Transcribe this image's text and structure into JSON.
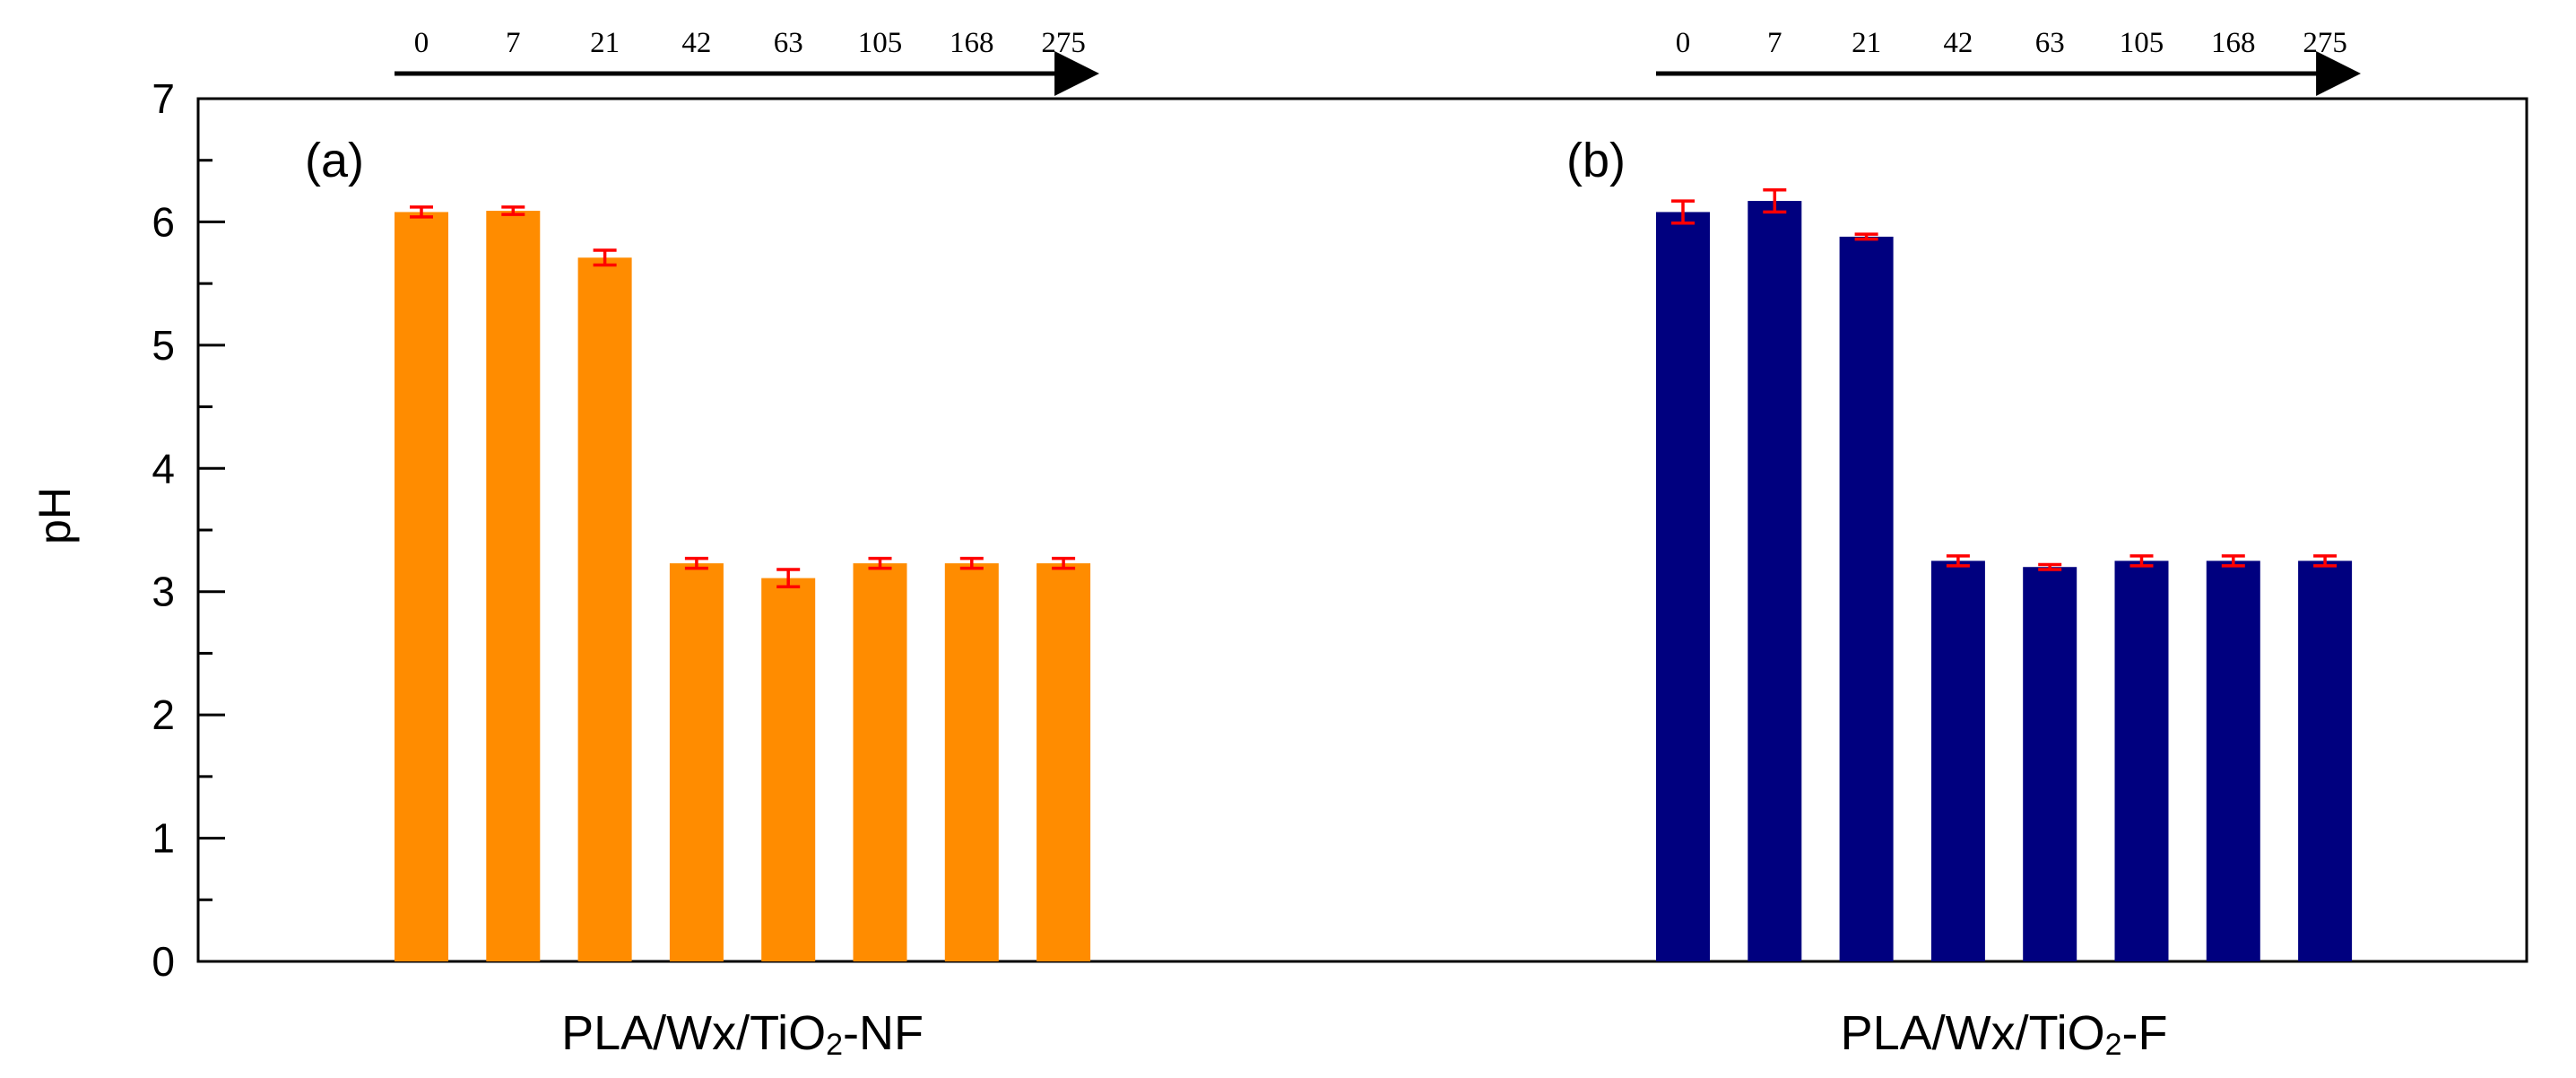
{
  "chart_data": {
    "type": "bar",
    "ylabel": "pH",
    "ylim": [
      0,
      7
    ],
    "y_ticks": [
      0,
      1,
      2,
      3,
      4,
      5,
      6,
      7
    ],
    "grid": false,
    "errorbar_color": "#ff0000",
    "panels": [
      {
        "panel_label": "(a)",
        "group_label": {
          "pre": "PLA/Wx/TiO",
          "sub": "2",
          "post": "-NF"
        },
        "color": "#ff8c00",
        "categories": [
          "0",
          "7",
          "21",
          "42",
          "63",
          "105",
          "168",
          "275"
        ],
        "values": [
          6.08,
          6.09,
          5.71,
          3.23,
          3.11,
          3.23,
          3.23,
          3.23
        ],
        "errors": [
          0.04,
          0.03,
          0.06,
          0.04,
          0.07,
          0.04,
          0.04,
          0.04
        ]
      },
      {
        "panel_label": "(b)",
        "group_label": {
          "pre": "PLA/Wx/TiO",
          "sub": "2",
          "post": "-F"
        },
        "color": "#00007f",
        "categories": [
          "0",
          "7",
          "21",
          "42",
          "63",
          "105",
          "168",
          "275"
        ],
        "values": [
          6.08,
          6.17,
          5.88,
          3.25,
          3.2,
          3.25,
          3.25,
          3.25
        ],
        "errors": [
          0.09,
          0.09,
          0.02,
          0.04,
          0.02,
          0.04,
          0.04,
          0.04
        ]
      }
    ]
  }
}
